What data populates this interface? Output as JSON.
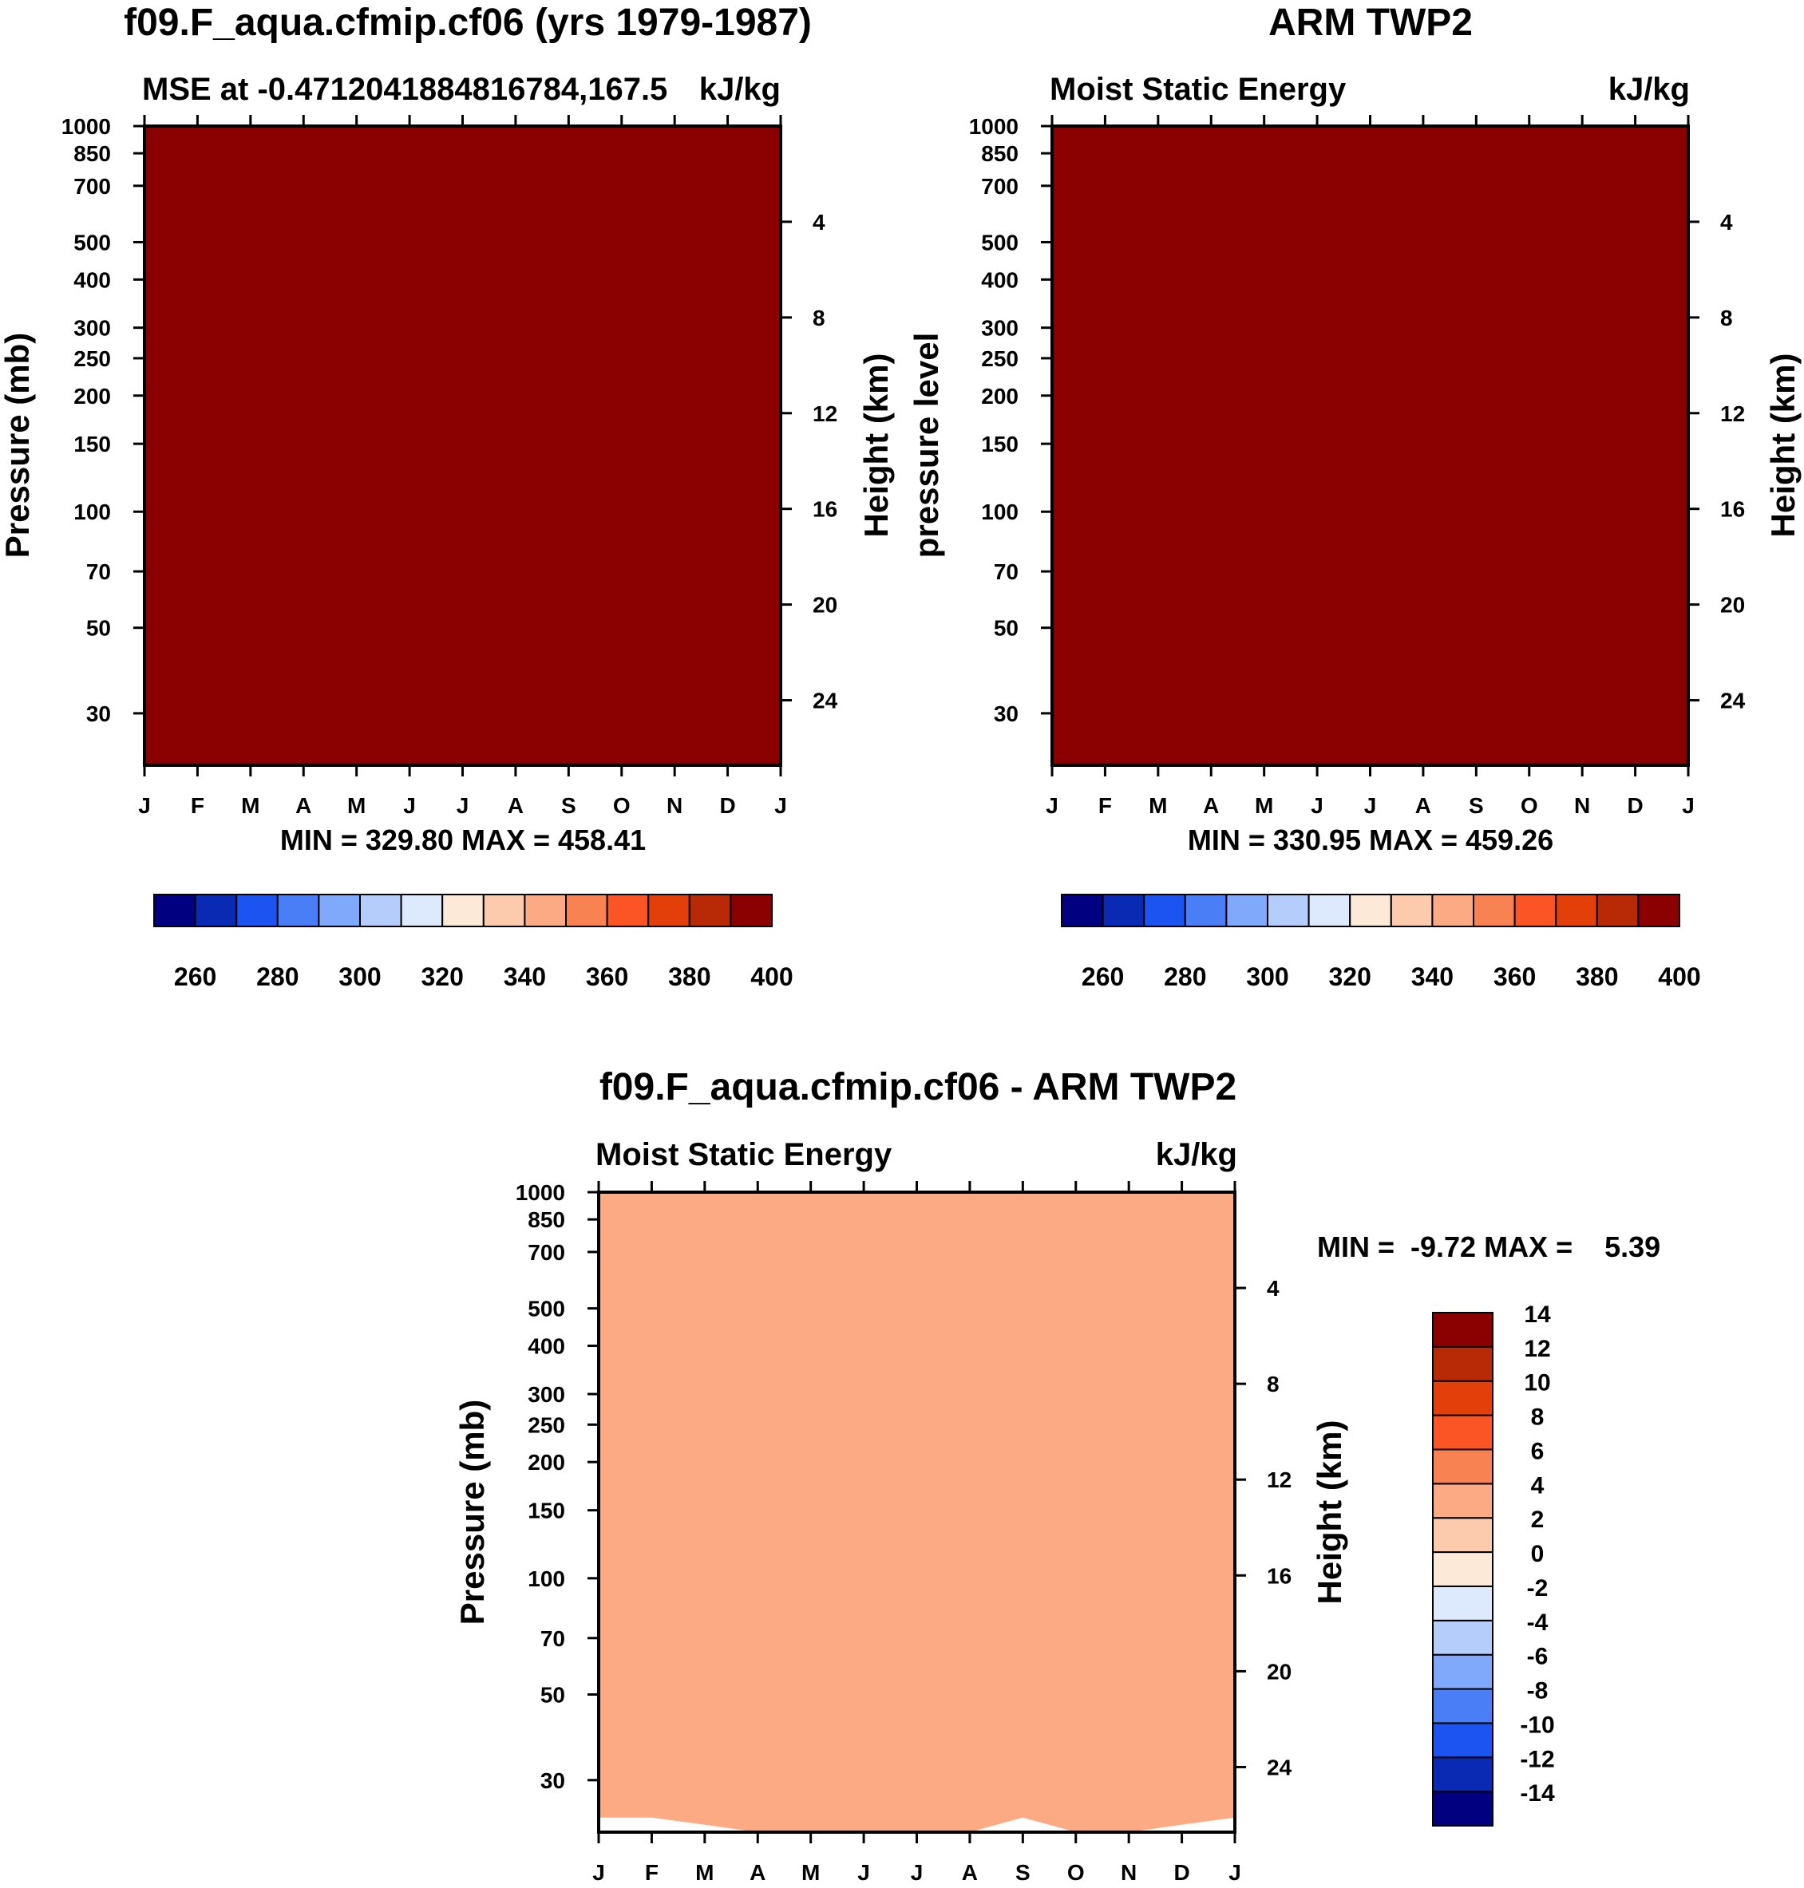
{
  "chart_data": [
    {
      "type": "contour",
      "panel": "model",
      "title": "f09.F_aqua.cfmip.cf06 (yrs 1979-1987)",
      "left_string": "MSE at -0.4712041884816784,167.5",
      "right_string": "kJ/kg",
      "ylabel": "Pressure (mb)",
      "ylabel_right": "Height (km)",
      "x_ticks": [
        "J",
        "F",
        "M",
        "A",
        "M",
        "J",
        "J",
        "A",
        "S",
        "O",
        "N",
        "D",
        "J"
      ],
      "y_ticks": [
        30,
        50,
        70,
        100,
        150,
        200,
        250,
        300,
        400,
        500,
        700,
        850,
        1000
      ],
      "height_ticks": [
        24,
        20,
        16,
        12,
        8,
        4
      ],
      "ylim_mb": [
        1000,
        22
      ],
      "stats": "MIN = 329.80 MAX = 458.41",
      "contour_levels": [
        250,
        260,
        270,
        280,
        290,
        300,
        310,
        320,
        330,
        340,
        350,
        360,
        370,
        380,
        390,
        400
      ],
      "layers": [
        {
          "fill": "#fde9d8",
          "p": [
            1000,
            1000,
            1000,
            1000,
            1000,
            1000,
            1000,
            1000,
            1000,
            1000,
            1000,
            1000,
            1000
          ]
        },
        {
          "fill": "#ddeafb",
          "p": [
            702,
            695,
            700,
            702,
            706,
            712,
            702,
            712,
            712,
            698,
            707,
            712,
            705
          ]
        },
        {
          "fill": "#fde9d8",
          "p": [
            712,
            712,
            712,
            712,
            712,
            712,
            712,
            712,
            712,
            712,
            712,
            712,
            712
          ]
        },
        {
          "fill": "#fccaad",
          "p": [
            166,
            168,
            164,
            163,
            164,
            166,
            168,
            167,
            166,
            165,
            165,
            164,
            164
          ]
        },
        {
          "fill": "#fbaa83",
          "p": [
            115,
            114,
            112,
            112,
            112,
            113,
            113,
            113,
            113,
            112,
            113,
            114,
            115
          ]
        },
        {
          "fill": "#f88251",
          "p": [
            88,
            88,
            88,
            88,
            88,
            88,
            88,
            88,
            88,
            88,
            88,
            88,
            88
          ]
        },
        {
          "fill": "#fc5525",
          "p": [
            73,
            73,
            73,
            73,
            73,
            73,
            73,
            73,
            73,
            73,
            73,
            73,
            73
          ]
        },
        {
          "fill": "#e23f0b",
          "p": [
            63,
            63,
            63,
            63,
            63,
            63,
            63,
            63,
            63,
            63,
            63,
            63,
            63
          ]
        },
        {
          "fill": "#b72a05",
          "p": [
            56,
            56,
            55,
            55,
            55,
            55,
            55,
            55,
            55,
            55,
            55,
            55,
            55
          ]
        },
        {
          "fill": "#8b0000",
          "p": [
            22,
            22,
            22,
            22,
            22,
            22,
            22,
            22,
            22,
            22,
            22,
            22,
            22
          ]
        }
      ]
    },
    {
      "type": "contour",
      "panel": "obs",
      "title": "ARM TWP2",
      "left_string": "Moist Static Energy",
      "right_string": "kJ/kg",
      "ylabel": "pressure level",
      "ylabel_right": "Height (km)",
      "x_ticks": [
        "J",
        "F",
        "M",
        "A",
        "M",
        "J",
        "J",
        "A",
        "S",
        "O",
        "N",
        "D",
        "J"
      ],
      "y_ticks": [
        30,
        50,
        70,
        100,
        150,
        200,
        250,
        300,
        400,
        500,
        700,
        850,
        1000
      ],
      "height_ticks": [
        24,
        20,
        16,
        12,
        8,
        4
      ],
      "ylim_mb": [
        1000,
        22
      ],
      "stats": "MIN = 330.95 MAX = 459.26",
      "contour_levels": [
        250,
        260,
        270,
        280,
        290,
        300,
        310,
        320,
        330,
        340,
        350,
        360,
        370,
        380,
        390,
        400
      ],
      "layers": [
        {
          "fill": "#fccaad",
          "p": [
            1000,
            1000,
            1000,
            1000,
            1000,
            1000,
            1000,
            1000,
            1000,
            1000,
            1000,
            1000,
            1000
          ]
        },
        {
          "fill": "#fde9d8",
          "p": [
            930,
            920,
            915,
            905,
            915,
            925,
            930,
            930,
            935,
            930,
            925,
            925,
            930
          ]
        },
        {
          "fill": "#fccaad",
          "p": [
            345,
            335,
            325,
            325,
            318,
            295,
            290,
            300,
            282,
            295,
            305,
            305,
            340
          ]
        },
        {
          "fill": "#fbaa83",
          "p": [
            124,
            123,
            122,
            121,
            122,
            122,
            121,
            123,
            121,
            121,
            122,
            122,
            121
          ]
        },
        {
          "fill": "#f88251",
          "p": [
            92,
            92,
            94,
            96,
            98,
            101,
            102,
            104,
            102,
            99,
            96,
            94,
            92
          ]
        },
        {
          "fill": "#fc5525",
          "p": [
            79,
            79,
            81,
            83,
            85,
            87,
            89,
            90,
            88,
            86,
            84,
            81,
            79
          ]
        },
        {
          "fill": "#e23f0b",
          "p": [
            70,
            70,
            71,
            72,
            74,
            76,
            78,
            79,
            78,
            76,
            74,
            71,
            70
          ]
        },
        {
          "fill": "#b72a05",
          "p": [
            61,
            62,
            63,
            64,
            65,
            66,
            67,
            68,
            67,
            65,
            64,
            62,
            61
          ]
        },
        {
          "fill": "#8b0000",
          "p": [
            22,
            22,
            22,
            22,
            22,
            22,
            22,
            22,
            22,
            22,
            22,
            22,
            22
          ]
        }
      ]
    },
    {
      "type": "contour",
      "panel": "difference",
      "title": "f09.F_aqua.cfmip.cf06 - ARM TWP2",
      "left_string": "Moist Static Energy",
      "right_string": "kJ/kg",
      "ylabel": "Pressure (mb)",
      "ylabel_right": "Height (km)",
      "x_ticks": [
        "J",
        "F",
        "M",
        "A",
        "M",
        "J",
        "J",
        "A",
        "S",
        "O",
        "N",
        "D",
        "J"
      ],
      "y_ticks": [
        30,
        50,
        70,
        100,
        150,
        200,
        250,
        300,
        400,
        500,
        700,
        850,
        1000
      ],
      "height_ticks": [
        24,
        20,
        16,
        12,
        8,
        4
      ],
      "ylim_mb": [
        1000,
        22
      ],
      "stats": "MIN =  -9.72 MAX =    5.39",
      "contour_levels": [
        -14,
        -12,
        -10,
        -8,
        -6,
        -4,
        -2,
        0,
        2,
        4,
        6,
        8,
        10,
        12,
        14
      ],
      "layers": [
        {
          "fill": "#1c54f2",
          "p": [
            1000,
            1000,
            1000,
            1000,
            1000,
            1000,
            1000,
            1000,
            1000,
            1000,
            1000,
            1000,
            1000
          ]
        },
        {
          "fill": "#4a7ef7",
          "p": [
            975,
            975,
            972,
            968,
            966,
            970,
            974,
            974,
            976,
            974,
            972,
            970,
            972
          ]
        },
        {
          "fill": "#80a9fb",
          "p": [
            925,
            920,
            920,
            930,
            930,
            925,
            925,
            925,
            925,
            925,
            925,
            920,
            920
          ]
        },
        {
          "fill": "#b4cdfb",
          "p": [
            860,
            850,
            850,
            870,
            870,
            850,
            840,
            830,
            820,
            830,
            840,
            850,
            860
          ]
        },
        {
          "fill": "#dde9fc",
          "p": [
            640,
            640,
            650,
            560,
            700,
            780,
            810,
            780,
            780,
            770,
            730,
            700,
            690
          ]
        },
        {
          "fill": "#fde9d8",
          "p": [
            560,
            560,
            560,
            560,
            560,
            540,
            560,
            560,
            540,
            560,
            560,
            540,
            560
          ]
        },
        {
          "fill": "#dde9fc",
          "p": [
            560,
            560,
            560,
            560,
            560,
            560,
            560,
            560,
            560,
            560,
            560,
            560,
            560
          ]
        },
        {
          "fill": "#b4cdfb",
          "p": [
            455,
            455,
            460,
            465,
            450,
            440,
            430,
            420,
            400,
            430,
            450,
            455,
            455
          ]
        },
        {
          "fill": "#80a9fb",
          "p": [
            300,
            290,
            290,
            300,
            320,
            340,
            330,
            310,
            250,
            320,
            370,
            380,
            390
          ]
        },
        {
          "fill": "#4a7ef7",
          "p": [
            260,
            250,
            250,
            250,
            250,
            250,
            250,
            250,
            250,
            250,
            250,
            250,
            250
          ]
        },
        {
          "fill": "#80a9fb",
          "p": [
            230,
            215,
            210,
            205,
            195,
            192,
            190,
            190,
            200,
            210,
            210,
            225,
            235
          ]
        },
        {
          "fill": "#80a9fb",
          "p": [
            160,
            150,
            160,
            160,
            170,
            200,
            200,
            200,
            180,
            190,
            200,
            160,
            150
          ]
        },
        {
          "fill": "#4a7ef7",
          "p": [
            160,
            150,
            165,
            160,
            168,
            200,
            200,
            200,
            180,
            190,
            200,
            160,
            150
          ]
        },
        {
          "fill": "#80a9fb",
          "p": [
            120,
            118,
            118,
            120,
            117,
            115,
            115,
            112,
            115,
            118,
            120,
            120,
            118
          ]
        },
        {
          "fill": "#b4cdfb",
          "p": [
            60,
            60,
            60,
            62,
            100,
            110,
            110,
            110,
            110,
            100,
            60,
            60,
            60
          ]
        },
        {
          "fill": "#80a9fb",
          "p": [
            50,
            50,
            52,
            58,
            92,
            104,
            102,
            98,
            90,
            70,
            55,
            55,
            52
          ]
        },
        {
          "fill": "#4a7ef7",
          "p": [
            50,
            50,
            50,
            50,
            60,
            75,
            90,
            92,
            90,
            65,
            50,
            50,
            50
          ]
        },
        {
          "fill": "#1c54f2",
          "p": [
            50,
            50,
            50,
            50,
            52,
            54,
            67,
            78,
            76,
            54,
            50,
            50,
            50
          ]
        },
        {
          "fill": "#dde9fc",
          "p": [
            47,
            47,
            47,
            47,
            44,
            44,
            44,
            44,
            44,
            44,
            44,
            44,
            47
          ]
        },
        {
          "fill": "#fde9d8",
          "p": [
            40,
            40,
            40,
            35,
            28,
            28,
            28,
            28,
            30,
            28,
            34,
            40,
            40
          ]
        },
        {
          "fill": "#fccaad",
          "p": [
            34,
            34,
            32,
            26,
            24,
            24,
            24,
            24,
            30,
            27,
            26,
            32,
            34
          ]
        },
        {
          "fill": "#fbaa83",
          "p": [
            24,
            24,
            23,
            22,
            22,
            22,
            22,
            22,
            24,
            22,
            22,
            23,
            24
          ]
        }
      ]
    }
  ],
  "colorbar_top": {
    "colors": [
      "#000080",
      "#0a2ab4",
      "#1c54f2",
      "#4a7ef7",
      "#80a9fb",
      "#b4cdfb",
      "#dde9fc",
      "#fde9d8",
      "#fccaad",
      "#fbaa83",
      "#f88251",
      "#fc5525",
      "#e23f0b",
      "#b72a05",
      "#8b0000"
    ],
    "labels": [
      "260",
      "280",
      "300",
      "320",
      "340",
      "360",
      "380",
      "400"
    ]
  },
  "colorbar_diff": {
    "colors": [
      "#000080",
      "#0a2ab4",
      "#1c54f2",
      "#4a7ef7",
      "#80a9fb",
      "#b4cdfb",
      "#dde9fc",
      "#fde9d8",
      "#fccaad",
      "#fbaa83",
      "#f88251",
      "#fc5525",
      "#e23f0b",
      "#b72a05",
      "#8b0000"
    ],
    "labels": [
      "-14",
      "-12",
      "-10",
      "-8",
      "-6",
      "-4",
      "-2",
      "0",
      "2",
      "4",
      "6",
      "8",
      "10",
      "12",
      "14"
    ]
  }
}
